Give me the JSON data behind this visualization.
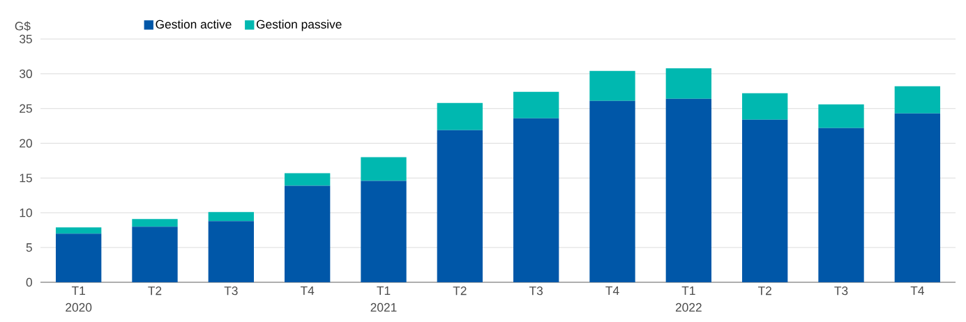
{
  "chart_data": {
    "type": "bar",
    "stacked": true,
    "ylabel": "G$",
    "categories": [
      "T1 2020",
      "T2",
      "T3",
      "T4",
      "T1 2021",
      "T2",
      "T3",
      "T4",
      "T1 2022",
      "T2",
      "T3",
      "T4"
    ],
    "series": [
      {
        "name": "Gestion active",
        "color": "#0057a8",
        "values": [
          7.0,
          8.0,
          8.8,
          13.9,
          14.6,
          21.9,
          23.6,
          26.1,
          26.4,
          23.4,
          22.2,
          24.3
        ]
      },
      {
        "name": "Gestion passive",
        "color": "#00b8b0",
        "values": [
          0.9,
          1.1,
          1.3,
          1.8,
          3.4,
          3.9,
          3.8,
          4.3,
          4.4,
          3.8,
          3.4,
          3.9
        ]
      }
    ],
    "ylim": [
      0,
      35
    ],
    "yticks": [
      0,
      5,
      10,
      15,
      20,
      25,
      30,
      35
    ],
    "grid": "y",
    "legend": "top left"
  }
}
